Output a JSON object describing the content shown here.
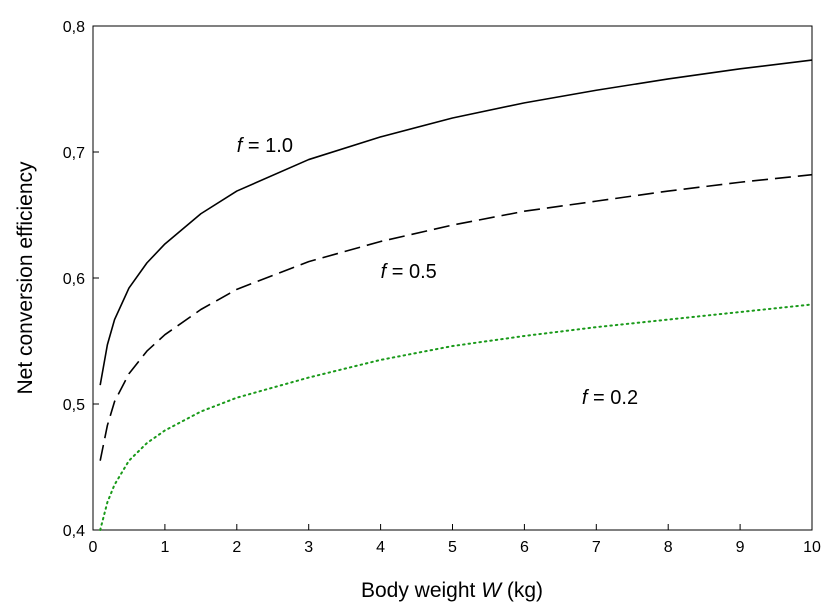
{
  "chart_data": {
    "type": "line",
    "title": "",
    "xlabel_prefix": "Body weight ",
    "xlabel_var": "W",
    "xlabel_suffix": " (kg)",
    "ylabel": "Net conversion efficiency",
    "xlim": [
      0,
      10
    ],
    "ylim": [
      0.4,
      0.8
    ],
    "x_ticks": [
      0,
      1,
      2,
      3,
      4,
      5,
      6,
      7,
      8,
      9,
      10
    ],
    "x_tick_labels": [
      "0",
      "1",
      "2",
      "3",
      "4",
      "5",
      "6",
      "7",
      "8",
      "9",
      "10"
    ],
    "y_ticks": [
      0.4,
      0.5,
      0.6,
      0.7,
      0.8
    ],
    "y_tick_labels": [
      "0,4",
      "0,5",
      "0,6",
      "0,7",
      "0,8"
    ],
    "grid": false,
    "legend": "none",
    "series": [
      {
        "label_var": "f",
        "label_value": " = 1.0",
        "style": "solid",
        "color": "#000000",
        "label_at": [
          2.0,
          0.7
        ],
        "x": [
          0.1,
          0.2,
          0.3,
          0.5,
          0.75,
          1,
          1.5,
          2,
          3,
          4,
          5,
          6,
          7,
          8,
          9,
          10
        ],
        "y": [
          0.515,
          0.547,
          0.567,
          0.592,
          0.612,
          0.627,
          0.651,
          0.669,
          0.694,
          0.712,
          0.727,
          0.739,
          0.749,
          0.758,
          0.766,
          0.773
        ]
      },
      {
        "label_var": "f",
        "label_value": " = 0.5",
        "style": "dashed",
        "color": "#000000",
        "label_at": [
          4.0,
          0.6
        ],
        "x": [
          0.1,
          0.2,
          0.3,
          0.5,
          0.75,
          1,
          1.5,
          2,
          3,
          4,
          5,
          6,
          7,
          8,
          9,
          10
        ],
        "y": [
          0.455,
          0.483,
          0.502,
          0.524,
          0.542,
          0.555,
          0.575,
          0.591,
          0.613,
          0.629,
          0.642,
          0.653,
          0.661,
          0.669,
          0.676,
          0.682
        ]
      },
      {
        "label_var": "f",
        "label_value": " = 0.2",
        "style": "dotted",
        "color": "#1a9a1a",
        "label_at": [
          6.8,
          0.5
        ],
        "x": [
          0.1,
          0.2,
          0.3,
          0.5,
          0.75,
          1,
          1.5,
          2,
          3,
          4,
          5,
          6,
          7,
          8,
          9,
          10
        ],
        "y": [
          0.4,
          0.422,
          0.436,
          0.455,
          0.469,
          0.479,
          0.494,
          0.505,
          0.521,
          0.535,
          0.546,
          0.554,
          0.561,
          0.567,
          0.573,
          0.579
        ]
      }
    ]
  }
}
